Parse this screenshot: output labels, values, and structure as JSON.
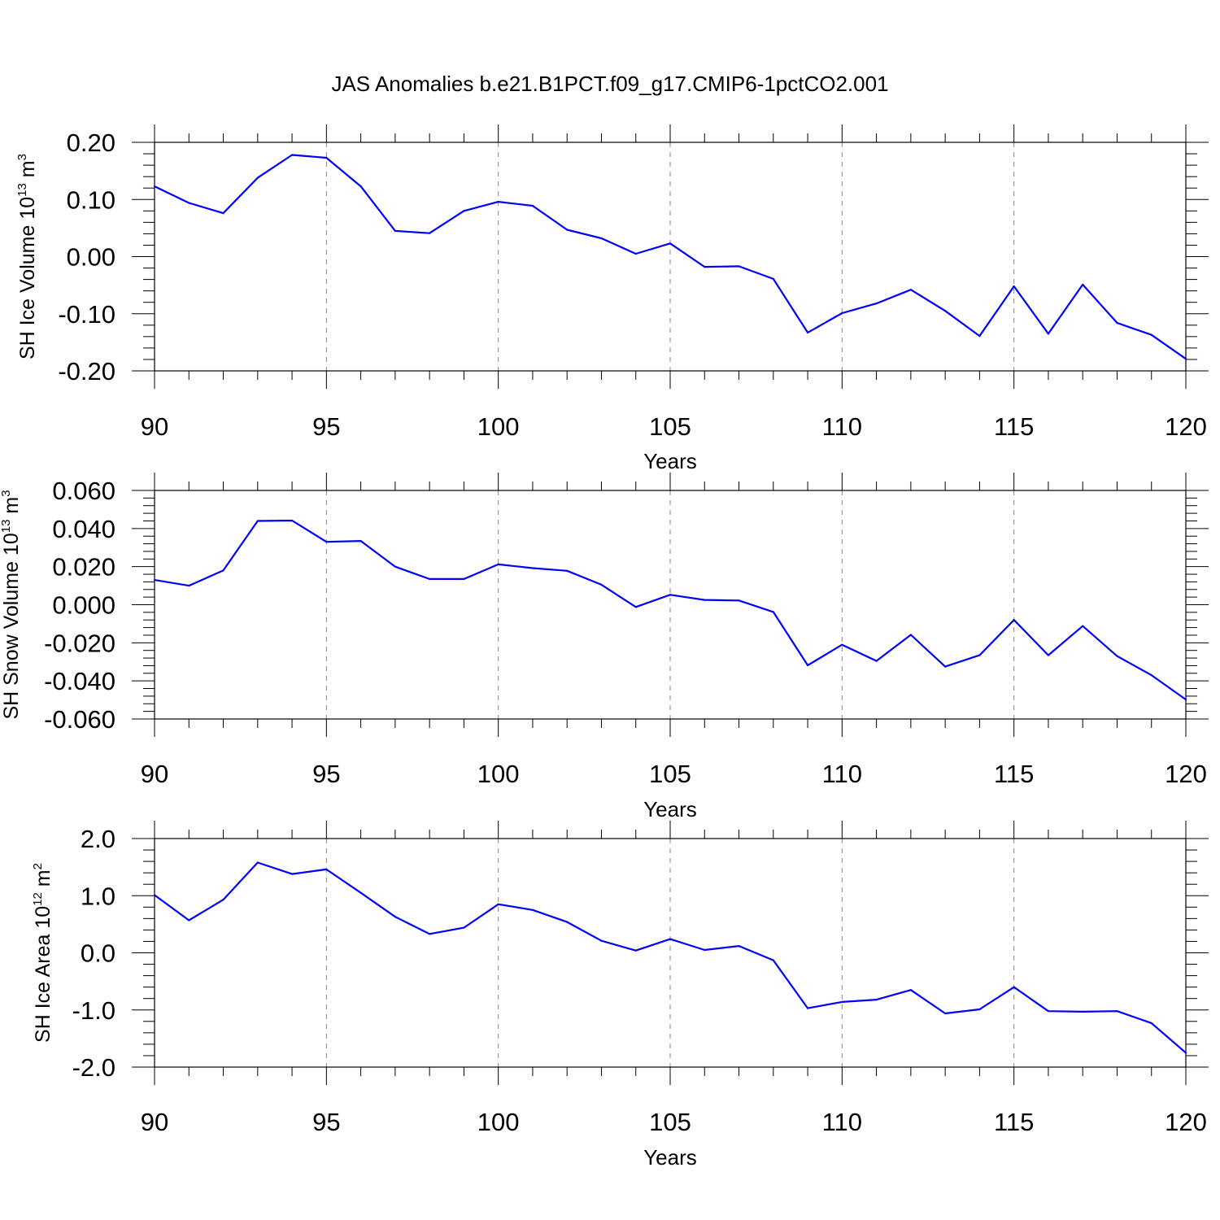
{
  "title": "JAS Anomalies b.e21.B1PCT.f09_g17.CMIP6-1pctCO2.001",
  "colors": {
    "series": "#0000ff",
    "axis": "#000000",
    "grid": "#888888"
  },
  "chart_data": [
    {
      "type": "line",
      "ylabel": {
        "base": "SH Ice Volume 10",
        "exp": "13",
        "unit": " m",
        "unit_exp": "3"
      },
      "xlabel": "Years",
      "xlim": [
        90,
        120
      ],
      "ylim": [
        -0.2,
        0.2
      ],
      "x_ticks": [
        90,
        95,
        100,
        105,
        110,
        115,
        120
      ],
      "y_ticks": [
        -0.2,
        -0.1,
        0.0,
        0.1,
        0.2
      ],
      "y_tick_labels": [
        "-0.20",
        "-0.10",
        "0.00",
        "0.10",
        "0.20"
      ],
      "grid": "vertical-dashed",
      "x": [
        90,
        91,
        92,
        93,
        94,
        95,
        96,
        97,
        98,
        99,
        100,
        101,
        102,
        103,
        104,
        105,
        106,
        107,
        108,
        109,
        110,
        111,
        112,
        113,
        114,
        115,
        116,
        117,
        118,
        119,
        120
      ],
      "values": [
        0.123,
        0.094,
        0.076,
        0.138,
        0.178,
        0.173,
        0.123,
        0.045,
        0.041,
        0.08,
        0.096,
        0.089,
        0.047,
        0.032,
        0.005,
        0.023,
        -0.018,
        -0.017,
        -0.039,
        -0.133,
        -0.099,
        -0.082,
        -0.058,
        -0.095,
        -0.139,
        -0.052,
        -0.135,
        -0.049,
        -0.116,
        -0.137,
        -0.179
      ]
    },
    {
      "type": "line",
      "ylabel": {
        "base": "SH Snow Volume 10",
        "exp": "13",
        "unit": " m",
        "unit_exp": "3"
      },
      "xlabel": "Years",
      "xlim": [
        90,
        120
      ],
      "ylim": [
        -0.06,
        0.06
      ],
      "x_ticks": [
        90,
        95,
        100,
        105,
        110,
        115,
        120
      ],
      "y_ticks": [
        -0.06,
        -0.04,
        -0.02,
        0.0,
        0.02,
        0.04,
        0.06
      ],
      "y_tick_labels": [
        "-0.060",
        "-0.040",
        "-0.020",
        "0.000",
        "0.020",
        "0.040",
        "0.060"
      ],
      "grid": "vertical-dashed",
      "x": [
        90,
        91,
        92,
        93,
        94,
        95,
        96,
        97,
        98,
        99,
        100,
        101,
        102,
        103,
        104,
        105,
        106,
        107,
        108,
        109,
        110,
        111,
        112,
        113,
        114,
        115,
        116,
        117,
        118,
        119,
        120
      ],
      "values": [
        0.013,
        0.01,
        0.018,
        0.044,
        0.0442,
        0.033,
        0.0335,
        0.02,
        0.0135,
        0.0135,
        0.0212,
        0.0192,
        0.0178,
        0.0105,
        -0.0012,
        0.0052,
        0.0025,
        0.0022,
        -0.0038,
        -0.0318,
        -0.021,
        -0.0295,
        -0.0158,
        -0.0325,
        -0.0265,
        -0.008,
        -0.0265,
        -0.0112,
        -0.027,
        -0.037,
        -0.0498
      ]
    },
    {
      "type": "line",
      "ylabel": {
        "base": "SH Ice Area 10",
        "exp": "12",
        "unit": " m",
        "unit_exp": "2"
      },
      "xlabel": "Years",
      "xlim": [
        90,
        120
      ],
      "ylim": [
        -2.0,
        2.0
      ],
      "x_ticks": [
        90,
        95,
        100,
        105,
        110,
        115,
        120
      ],
      "y_ticks": [
        -2.0,
        -1.0,
        0.0,
        1.0,
        2.0
      ],
      "y_tick_labels": [
        "-2.0",
        "-1.0",
        "0.0",
        "1.0",
        "2.0"
      ],
      "grid": "vertical-dashed",
      "x": [
        90,
        91,
        92,
        93,
        94,
        95,
        96,
        97,
        98,
        99,
        100,
        101,
        102,
        103,
        104,
        105,
        106,
        107,
        108,
        109,
        110,
        111,
        112,
        113,
        114,
        115,
        116,
        117,
        118,
        119,
        120
      ],
      "values": [
        1.01,
        0.57,
        0.93,
        1.58,
        1.38,
        1.46,
        1.05,
        0.63,
        0.33,
        0.44,
        0.85,
        0.75,
        0.54,
        0.21,
        0.04,
        0.24,
        0.05,
        0.12,
        -0.13,
        -0.97,
        -0.86,
        -0.82,
        -0.65,
        -1.06,
        -0.99,
        -0.6,
        -1.02,
        -1.03,
        -1.02,
        -1.23,
        -1.75
      ]
    }
  ]
}
